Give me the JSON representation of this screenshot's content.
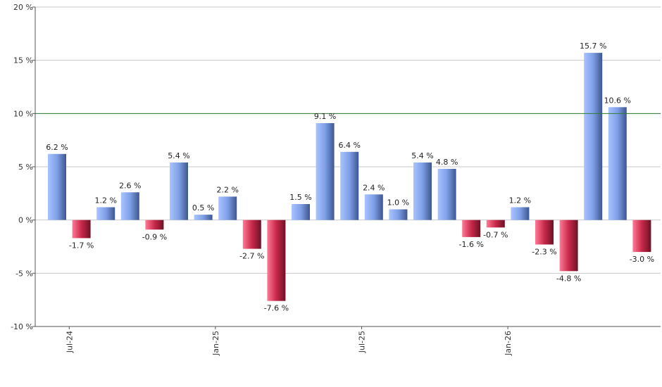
{
  "chart_data": {
    "type": "bar",
    "title": "",
    "xlabel": "",
    "ylabel": "",
    "ylim": [
      -10,
      20
    ],
    "y_ticks": [
      {
        "value": -10,
        "label": "-10 %"
      },
      {
        "value": -5,
        "label": "-5 %"
      },
      {
        "value": 0,
        "label": "0 %"
      },
      {
        "value": 5,
        "label": "5 %"
      },
      {
        "value": 10,
        "label": "10 %"
      },
      {
        "value": 15,
        "label": "15 %"
      },
      {
        "value": 20,
        "label": "20 %"
      }
    ],
    "grid": true,
    "reference_line": {
      "value": 10,
      "color": "#2e7d32"
    },
    "x_tick_labels": [
      {
        "index": 0.5,
        "label": "Jul-24"
      },
      {
        "index": 6.5,
        "label": "Jan-25"
      },
      {
        "index": 12.5,
        "label": "Jul-25"
      },
      {
        "index": 18.5,
        "label": "Jan-26"
      }
    ],
    "values": [
      6.2,
      -1.7,
      1.2,
      2.6,
      -0.9,
      5.4,
      0.5,
      2.2,
      -2.7,
      -7.6,
      1.5,
      9.1,
      6.4,
      2.4,
      1.0,
      5.4,
      4.8,
      -1.6,
      -0.7,
      1.2,
      -2.3,
      -4.8,
      15.7,
      10.6,
      -3.0
    ],
    "labels": [
      "6.2 %",
      "-1.7 %",
      "1.2 %",
      "2.6 %",
      "-0.9 %",
      "5.4 %",
      "0.5 %",
      "2.2 %",
      "-2.7 %",
      "-7.6 %",
      "1.5 %",
      "9.1 %",
      "6.4 %",
      "2.4 %",
      "1.0 %",
      "5.4 %",
      "4.8 %",
      "-1.6 %",
      "-0.7 %",
      "1.2 %",
      "-2.3 %",
      "-4.8 %",
      "15.7 %",
      "10.6 %",
      "-3.0 %"
    ],
    "colors": {
      "positive": "#7f9fe6",
      "negative": "#c8294a"
    }
  }
}
